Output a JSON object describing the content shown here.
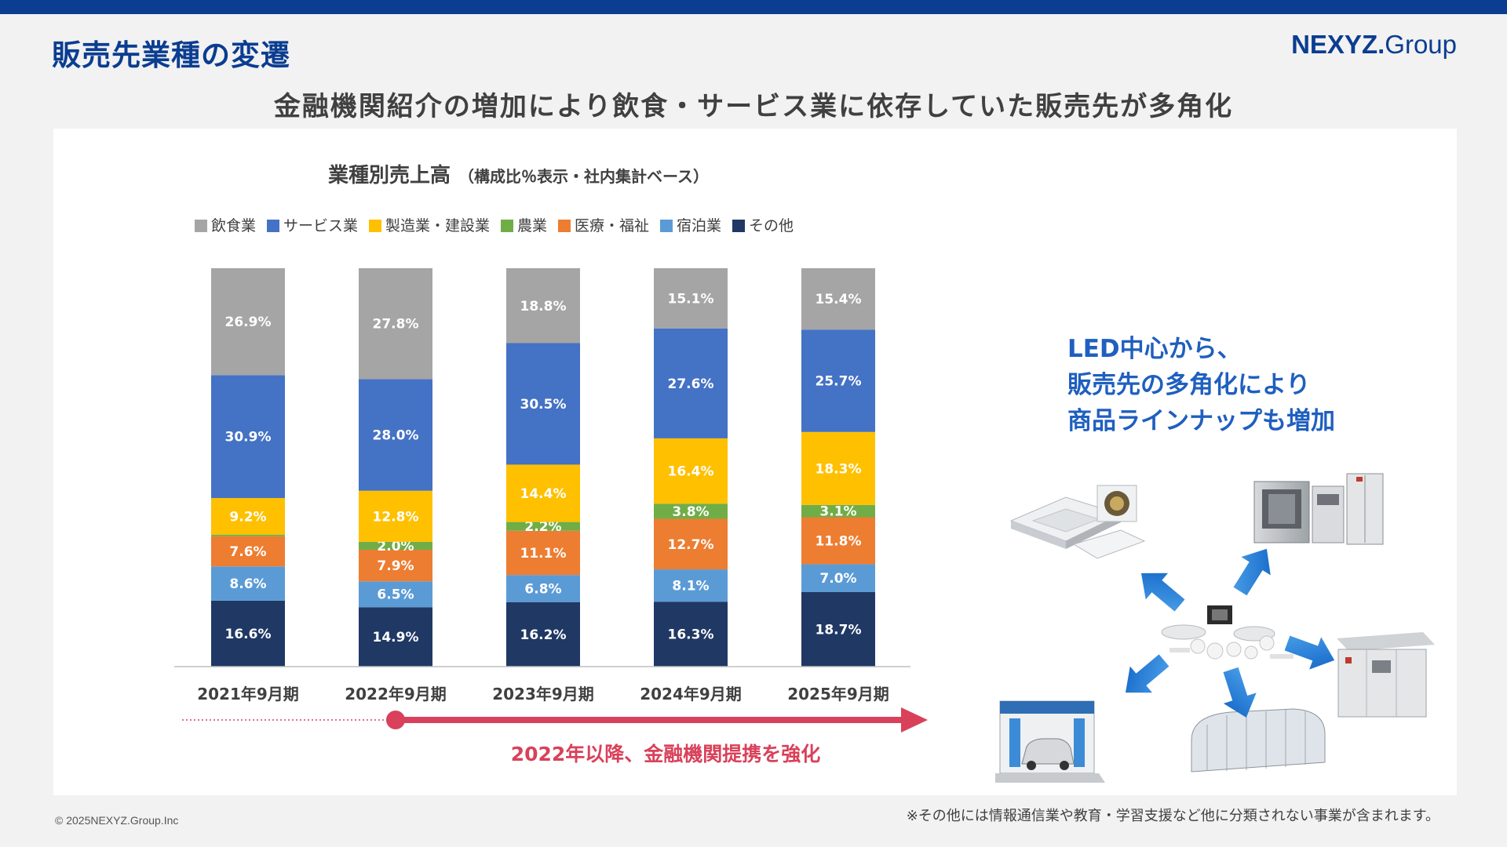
{
  "header": {
    "title": "販売先業種の変遷",
    "logo_main": "NEXYZ.",
    "logo_group": "Group",
    "subtitle": "金融機関紹介の増加により飲食・サービス業に依存していた販売先が多角化"
  },
  "chart_data": {
    "type": "bar",
    "stacked": true,
    "title": "業種別売上高",
    "subtitle": "（構成比％表示・社内集計ベース）",
    "categories": [
      "2021年9月期",
      "2022年9月期",
      "2023年9月期",
      "2024年9月期",
      "2025年9月期"
    ],
    "series": [
      {
        "name": "その他",
        "color": "#203864",
        "values": [
          16.6,
          14.9,
          16.2,
          16.3,
          18.7
        ]
      },
      {
        "name": "宿泊業",
        "color": "#5b9bd5",
        "values": [
          8.6,
          6.5,
          6.8,
          8.1,
          7.0
        ]
      },
      {
        "name": "医療・福祉",
        "color": "#ed7d31",
        "values": [
          7.6,
          7.9,
          11.1,
          12.7,
          11.8
        ]
      },
      {
        "name": "農業",
        "color": "#70ad47",
        "values": [
          0.4,
          2.0,
          2.2,
          3.8,
          3.1
        ]
      },
      {
        "name": "製造業・建設業",
        "color": "#ffc000",
        "values": [
          9.2,
          12.8,
          14.4,
          16.4,
          18.3
        ]
      },
      {
        "name": "サービス業",
        "color": "#4472c4",
        "values": [
          30.9,
          28.0,
          30.5,
          27.6,
          25.7
        ]
      },
      {
        "name": "飲食業",
        "color": "#a5a5a5",
        "values": [
          26.9,
          27.8,
          18.8,
          15.1,
          15.4
        ]
      }
    ],
    "data_labels": [
      [
        "16.6%",
        "14.9%",
        "16.2%",
        "16.3%",
        "18.7%"
      ],
      [
        "8.6%",
        "6.5%",
        "6.8%",
        "8.1%",
        "7.0%"
      ],
      [
        "7.6%",
        "7.9%",
        "11.1%",
        "12.7%",
        "11.8%"
      ],
      [
        "",
        "2.0%",
        "2.2%",
        "3.8%",
        "3.1%"
      ],
      [
        "9.2%",
        "12.8%",
        "14.4%",
        "16.4%",
        "18.3%"
      ],
      [
        "30.9%",
        "28.0%",
        "30.5%",
        "27.6%",
        "25.7%"
      ],
      [
        "26.9%",
        "27.8%",
        "18.8%",
        "15.1%",
        "15.4%"
      ]
    ],
    "legend_order": [
      "飲食業",
      "サービス業",
      "製造業・建設業",
      "農業",
      "医療・福祉",
      "宿泊業",
      "その他"
    ],
    "legend_position": "top",
    "ylim": [
      0,
      100
    ],
    "grid": false
  },
  "timeline": {
    "label": "2022年以降、金融機関提携を強化",
    "color": "#d9415a"
  },
  "callout": {
    "lines": [
      "LED中心から、",
      "販売先の多角化により",
      "商品ラインナップも増加"
    ],
    "color": "#1f5fbf"
  },
  "illustration": {
    "center": "led-products-icon",
    "items": [
      "air-conditioner-icon",
      "kitchen-equipment-icon",
      "electrical-cabinet-icon",
      "greenhouse-icon",
      "car-wash-icon"
    ],
    "arrow_color": "#1f7fd6"
  },
  "footer": {
    "copyright": "© 2025NEXYZ.Group.Inc",
    "note": "※その他には情報通信業や教育・学習支援など他に分類されない事業が含まれます。"
  }
}
